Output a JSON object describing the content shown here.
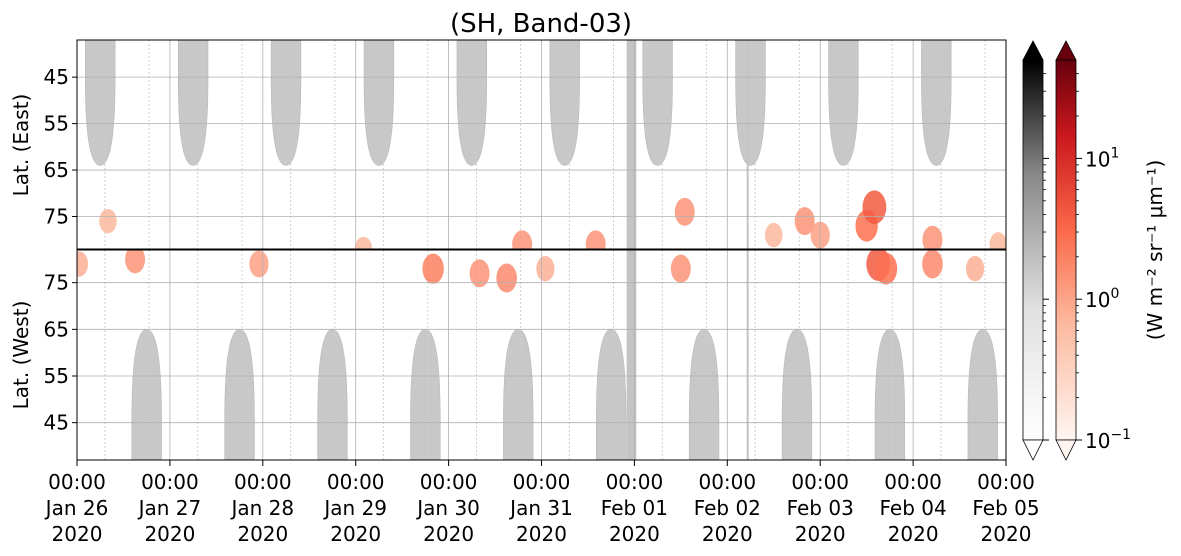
{
  "chart_data": {
    "type": "heatmap",
    "title": "(SH, Band-03)",
    "x_ticks": [
      {
        "date": "2020-01-26T00:00",
        "time": "00:00",
        "day": "Jan 26",
        "year": "2020"
      },
      {
        "date": "2020-01-27T00:00",
        "time": "00:00",
        "day": "Jan 27",
        "year": "2020"
      },
      {
        "date": "2020-01-28T00:00",
        "time": "00:00",
        "day": "Jan 28",
        "year": "2020"
      },
      {
        "date": "2020-01-29T00:00",
        "time": "00:00",
        "day": "Jan 29",
        "year": "2020"
      },
      {
        "date": "2020-01-30T00:00",
        "time": "00:00",
        "day": "Jan 30",
        "year": "2020"
      },
      {
        "date": "2020-01-31T00:00",
        "time": "00:00",
        "day": "Jan 31",
        "year": "2020"
      },
      {
        "date": "2020-02-01T00:00",
        "time": "00:00",
        "day": "Feb 01",
        "year": "2020"
      },
      {
        "date": "2020-02-02T00:00",
        "time": "00:00",
        "day": "Feb 02",
        "year": "2020"
      },
      {
        "date": "2020-02-03T00:00",
        "time": "00:00",
        "day": "Feb 03",
        "year": "2020"
      },
      {
        "date": "2020-02-04T00:00",
        "time": "00:00",
        "day": "Feb 04",
        "year": "2020"
      },
      {
        "date": "2020-02-05T00:00",
        "time": "00:00",
        "day": "Feb 05",
        "year": "2020"
      }
    ],
    "x_range": [
      "2020-01-26T00:00",
      "2020-02-05T00:00"
    ],
    "panels": [
      {
        "id": "east",
        "ylabel": "Lat. (East)",
        "yticks": [
          "45",
          "55",
          "65",
          "75"
        ],
        "y_range": [
          37,
          82
        ],
        "direction": "increasing-down"
      },
      {
        "id": "west",
        "ylabel": "Lat. (West)",
        "yticks": [
          "75",
          "65",
          "55",
          "45"
        ],
        "y_range": [
          82,
          37
        ],
        "direction": "decreasing-down"
      }
    ],
    "grid": true,
    "colorbars": [
      {
        "name": "gray",
        "colormap": "Greys",
        "extend": "both",
        "scale": "log",
        "range": [
          0.1,
          50
        ],
        "colors": [
          "#ffffff",
          "#000000"
        ]
      },
      {
        "name": "red",
        "colormap": "Reds",
        "extend": "both",
        "scale": "log",
        "range": [
          0.1,
          50
        ],
        "colors": [
          "#fff5f0",
          "#67000d"
        ]
      }
    ],
    "colorbar_ticks": [
      {
        "base": "10",
        "exp": "1",
        "value": 10
      },
      {
        "base": "10",
        "exp": "0",
        "value": 1
      },
      {
        "base": "10",
        "exp": "−1",
        "value": 0.1
      }
    ],
    "colorbar_label": "(W m⁻² sr⁻¹ μm⁻¹)",
    "day_side_lobes": [
      {
        "panel": "east",
        "center": "2020-01-26T06:00",
        "half_width_days": 0.16,
        "lat_edge": 64
      },
      {
        "panel": "east",
        "center": "2020-01-27T06:00",
        "half_width_days": 0.16,
        "lat_edge": 64
      },
      {
        "panel": "east",
        "center": "2020-01-28T06:00",
        "half_width_days": 0.16,
        "lat_edge": 64
      },
      {
        "panel": "east",
        "center": "2020-01-29T06:00",
        "half_width_days": 0.16,
        "lat_edge": 64
      },
      {
        "panel": "east",
        "center": "2020-01-30T06:00",
        "half_width_days": 0.16,
        "lat_edge": 64
      },
      {
        "panel": "east",
        "center": "2020-01-31T06:00",
        "half_width_days": 0.16,
        "lat_edge": 64
      },
      {
        "panel": "east",
        "center": "2020-02-01T06:00",
        "half_width_days": 0.16,
        "lat_edge": 64
      },
      {
        "panel": "east",
        "center": "2020-02-02T06:00",
        "half_width_days": 0.16,
        "lat_edge": 64
      },
      {
        "panel": "east",
        "center": "2020-02-03T06:00",
        "half_width_days": 0.16,
        "lat_edge": 64
      },
      {
        "panel": "east",
        "center": "2020-02-04T06:00",
        "half_width_days": 0.16,
        "lat_edge": 64
      },
      {
        "panel": "west",
        "center": "2020-01-26T18:00",
        "half_width_days": 0.16,
        "lat_edge": 65
      },
      {
        "panel": "west",
        "center": "2020-01-27T18:00",
        "half_width_days": 0.16,
        "lat_edge": 65
      },
      {
        "panel": "west",
        "center": "2020-01-28T18:00",
        "half_width_days": 0.16,
        "lat_edge": 65
      },
      {
        "panel": "west",
        "center": "2020-01-29T18:00",
        "half_width_days": 0.16,
        "lat_edge": 65
      },
      {
        "panel": "west",
        "center": "2020-01-30T18:00",
        "half_width_days": 0.16,
        "lat_edge": 65
      },
      {
        "panel": "west",
        "center": "2020-01-31T18:00",
        "half_width_days": 0.16,
        "lat_edge": 65
      },
      {
        "panel": "west",
        "center": "2020-02-01T18:00",
        "half_width_days": 0.16,
        "lat_edge": 65
      },
      {
        "panel": "west",
        "center": "2020-02-02T18:00",
        "half_width_days": 0.16,
        "lat_edge": 65
      },
      {
        "panel": "west",
        "center": "2020-02-03T18:00",
        "half_width_days": 0.16,
        "lat_edge": 65
      },
      {
        "panel": "west",
        "center": "2020-02-04T18:00",
        "half_width_days": 0.16,
        "lat_edge": 65
      }
    ],
    "missing_data_strips": [
      {
        "start": "2020-01-31T22:00",
        "end": "2020-02-01T00:30"
      },
      {
        "start": "2020-02-02T05:00",
        "end": "2020-02-02T05:30"
      }
    ],
    "red_emission_patches": [
      {
        "panel": "east",
        "time": "2020-01-26T08:00",
        "lat": 76,
        "value": 0.5
      },
      {
        "panel": "west",
        "time": "2020-01-26T15:00",
        "lat": 80,
        "value": 1.0
      },
      {
        "panel": "west",
        "time": "2020-01-26T00:30",
        "lat": 79,
        "value": 0.6
      },
      {
        "panel": "west",
        "time": "2020-01-27T23:00",
        "lat": 79,
        "value": 0.8
      },
      {
        "panel": "east",
        "time": "2020-01-29T02:00",
        "lat": 82,
        "value": 0.5
      },
      {
        "panel": "west",
        "time": "2020-01-29T20:00",
        "lat": 78,
        "value": 1.5
      },
      {
        "panel": "west",
        "time": "2020-01-30T08:00",
        "lat": 77,
        "value": 1.0
      },
      {
        "panel": "west",
        "time": "2020-01-30T15:00",
        "lat": 76,
        "value": 1.2
      },
      {
        "panel": "east",
        "time": "2020-01-30T19:00",
        "lat": 81,
        "value": 1.0
      },
      {
        "panel": "west",
        "time": "2020-01-31T01:00",
        "lat": 78,
        "value": 0.6
      },
      {
        "panel": "east",
        "time": "2020-01-31T14:00",
        "lat": 81,
        "value": 1.0
      },
      {
        "panel": "east",
        "time": "2020-02-01T13:00",
        "lat": 74,
        "value": 1.0
      },
      {
        "panel": "west",
        "time": "2020-02-01T12:00",
        "lat": 78,
        "value": 1.0
      },
      {
        "panel": "east",
        "time": "2020-02-02T12:00",
        "lat": 79,
        "value": 0.5
      },
      {
        "panel": "east",
        "time": "2020-02-02T20:00",
        "lat": 76,
        "value": 1.0
      },
      {
        "panel": "east",
        "time": "2020-02-03T00:00",
        "lat": 79,
        "value": 0.8
      },
      {
        "panel": "east",
        "time": "2020-02-03T12:00",
        "lat": 77,
        "value": 2.0
      },
      {
        "panel": "east",
        "time": "2020-02-03T14:00",
        "lat": 73,
        "value": 3.0
      },
      {
        "panel": "west",
        "time": "2020-02-03T15:00",
        "lat": 79,
        "value": 3.0
      },
      {
        "panel": "west",
        "time": "2020-02-03T17:00",
        "lat": 78,
        "value": 2.0
      },
      {
        "panel": "east",
        "time": "2020-02-04T05:00",
        "lat": 80,
        "value": 1.0
      },
      {
        "panel": "west",
        "time": "2020-02-04T05:00",
        "lat": 79,
        "value": 1.2
      },
      {
        "panel": "west",
        "time": "2020-02-04T16:00",
        "lat": 78,
        "value": 0.6
      },
      {
        "panel": "east",
        "time": "2020-02-04T22:00",
        "lat": 81,
        "value": 0.5
      }
    ]
  }
}
